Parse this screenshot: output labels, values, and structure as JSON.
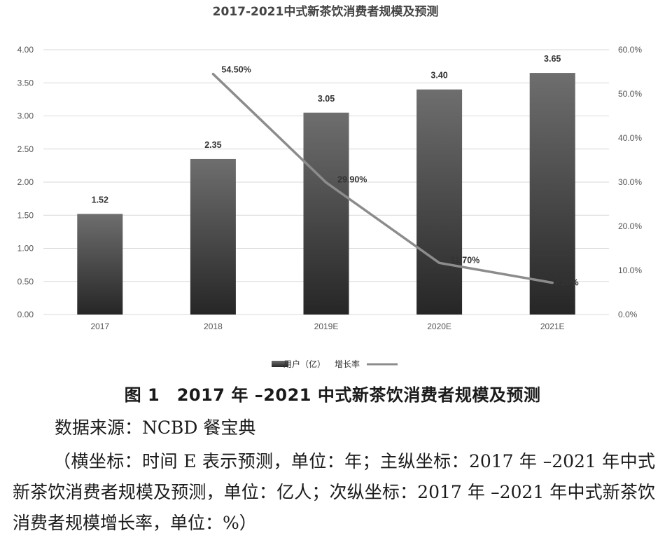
{
  "chart_data": {
    "type": "bar+line",
    "title": "2017-2021中式新茶饮消费者规模及预测",
    "categories": [
      "2017",
      "2018",
      "2019E",
      "2020E",
      "2021E"
    ],
    "bar_series": {
      "name": "用户（亿）",
      "values": [
        1.52,
        2.35,
        3.05,
        3.4,
        3.65
      ],
      "labels": [
        "1.52",
        "2.35",
        "3.05",
        "3.40",
        "3.65"
      ],
      "axis": "left"
    },
    "line_series": {
      "name": "增长率",
      "values": [
        null,
        54.5,
        29.9,
        11.7,
        7.2
      ],
      "labels": [
        "",
        "54.50%",
        "29.90%",
        "11.70%",
        "7.20%"
      ],
      "axis": "right"
    },
    "y_left": {
      "min": 0,
      "max": 4,
      "ticks": [
        0,
        0.5,
        1.0,
        1.5,
        2.0,
        2.5,
        3.0,
        3.5,
        4.0
      ],
      "tick_labels": [
        "0.00",
        "0.50",
        "1.00",
        "1.50",
        "2.00",
        "2.50",
        "3.00",
        "3.50",
        "4.00"
      ]
    },
    "y_right": {
      "min": 0,
      "max": 60,
      "ticks": [
        0,
        10,
        20,
        30,
        40,
        50,
        60
      ],
      "tick_labels": [
        "0.0%",
        "10.0%",
        "20.0%",
        "30.0%",
        "40.0%",
        "50.0%",
        "60.0%"
      ]
    },
    "grid": true,
    "legend": "bottom-center",
    "colors": {
      "bar_top": "#6e6e6e",
      "bar_bottom": "#262626",
      "line": "#8c8c8c",
      "grid": "#d9d9d9"
    }
  },
  "caption": "图 1　2017 年 –2021 中式新茶饮消费者规模及预测",
  "source": "数据来源：NCBD 餐宝典",
  "note": "（横坐标：时间 E 表示预测，单位：年；主纵坐标：2017 年 –2021 年中式新茶饮消费者规模及预测，单位：亿人；次纵坐标：2017 年 –2021 年中式新茶饮消费者规模增长率，单位：%）"
}
